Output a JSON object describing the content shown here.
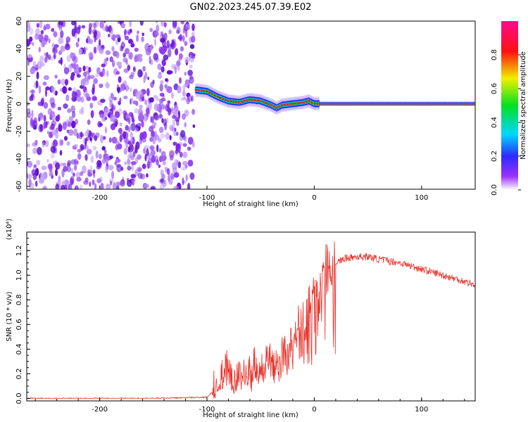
{
  "title": "GN02.2023.245.07.39.E02",
  "colors": {
    "snr_line": "#e8332b",
    "ridge": "#e81c1c",
    "noise": "#7a1ee6",
    "axis": "#000000"
  },
  "chart_data": [
    {
      "type": "heatmap",
      "title": "GN02.2023.245.07.39.E02",
      "xlabel": "Height of straight line (km)",
      "ylabel": "Frequency (Hz)",
      "xlim": [
        -268,
        150
      ],
      "ylim": [
        -62,
        60
      ],
      "xticks": [
        -200,
        -100,
        0,
        100
      ],
      "yticks": [
        60,
        40,
        20,
        0,
        -20,
        -40,
        -60
      ],
      "colorbar": {
        "label": "Normalized spectral amplitude",
        "range": [
          0.0,
          1.0
        ],
        "ticks": [
          "0.0",
          "0.2",
          "0.4",
          "0.6",
          "0.8"
        ],
        "colormap": "rainbow (white-purple-blue-cyan-green-yellow-red-magenta)"
      },
      "noise_region_x": [
        -268,
        -112
      ],
      "ridge": {
        "x": [
          -110,
          -100,
          -90,
          -80,
          -70,
          -60,
          -50,
          -40,
          -35,
          -30,
          -20,
          -10,
          -5,
          0,
          50,
          100,
          150
        ],
        "y": [
          10,
          9,
          5,
          2,
          1,
          3,
          2,
          -1,
          -3,
          -1,
          0,
          1,
          2,
          0,
          0,
          0,
          0
        ]
      },
      "grid": false
    },
    {
      "type": "line",
      "xlabel": "Height of straight line (km)",
      "ylabel": "SNR (10 * v/v)",
      "y_multiplier_label": "(x10⁴)",
      "xlim": [
        -268,
        150
      ],
      "ylim": [
        -0.02,
        1.35
      ],
      "xticks": [
        -200,
        -100,
        0,
        100
      ],
      "yticks": [
        "0.0",
        "0.2",
        "0.4",
        "0.6",
        "0.8",
        "1.0",
        "1.2"
      ],
      "series": [
        {
          "x": [
            -268,
            -150,
            -100,
            -92,
            -85,
            -80,
            -75,
            -70,
            -60,
            -50,
            -40,
            -30,
            -25,
            -20,
            -15,
            -12,
            -10,
            -5,
            0,
            5,
            10,
            12,
            15,
            20,
            25,
            30,
            40,
            50,
            60,
            80,
            100,
            120,
            140,
            150
          ],
          "y": [
            0.0,
            0.0,
            0.01,
            0.08,
            0.2,
            0.3,
            0.15,
            0.25,
            0.22,
            0.3,
            0.35,
            0.4,
            0.38,
            0.48,
            0.6,
            0.7,
            0.6,
            0.75,
            0.9,
            1.05,
            1.15,
            1.3,
            1.05,
            1.1,
            1.12,
            1.14,
            1.15,
            1.15,
            1.13,
            1.1,
            1.05,
            1.0,
            0.95,
            0.92
          ]
        }
      ],
      "grid": false
    }
  ]
}
